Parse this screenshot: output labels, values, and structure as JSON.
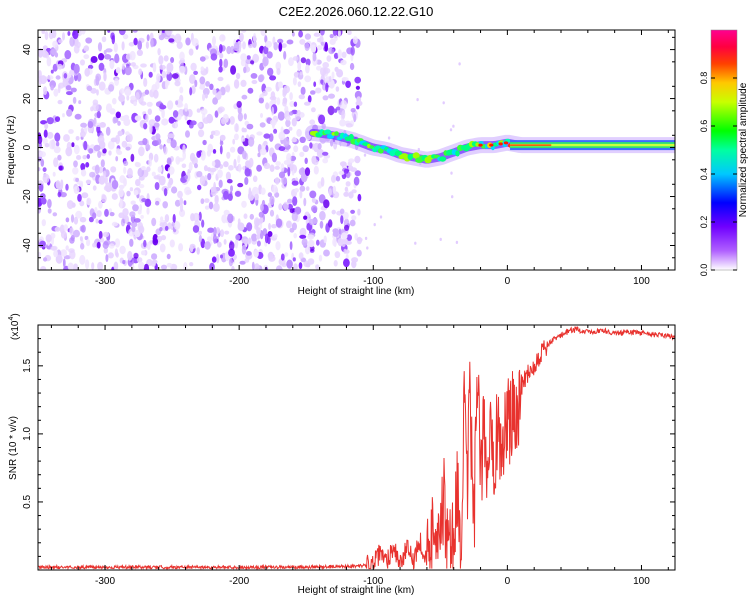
{
  "chart_data": [
    {
      "type": "heatmap",
      "title": "C2E2.2026.060.12.22.G10",
      "xlabel": "Height of straight line (km)",
      "ylabel": "Frequency (Hz)",
      "xlim": [
        -350,
        125
      ],
      "ylim": [
        -50,
        48
      ],
      "xticks": [
        -300,
        -200,
        -100,
        0,
        100
      ],
      "yticks": [
        -40,
        -20,
        0,
        20,
        40
      ],
      "xtick_labels": [
        "-300",
        "-200",
        "-100",
        "0",
        "100"
      ],
      "ytick_labels": [
        "-40",
        "-20",
        "0",
        "20",
        "40"
      ],
      "noise_region_x": [
        -350,
        -110
      ],
      "signal_track": {
        "x": [
          -145,
          -130,
          -115,
          -100,
          -90,
          -80,
          -70,
          -60,
          -50,
          -40,
          -30,
          -20,
          -10,
          0,
          10,
          30,
          60,
          90,
          125
        ],
        "frequency": [
          6,
          5,
          3,
          0,
          -1,
          -3,
          -4,
          -5,
          -4,
          -2,
          0,
          1,
          1,
          2,
          1,
          1,
          1,
          1,
          1
        ]
      },
      "colorbar": {
        "label": "Normalized spectral amplitude",
        "range": [
          0,
          1
        ],
        "ticks": [
          0.0,
          0.2,
          0.4,
          0.6,
          0.8
        ],
        "tick_labels": [
          "0.0",
          "0.2",
          "0.4",
          "0.6",
          "0.8"
        ],
        "colors": [
          "#ffffff",
          "#9f00ff",
          "#0000ff",
          "#00ffff",
          "#00ff00",
          "#ffff00",
          "#ff0000",
          "#ff00a0"
        ]
      }
    },
    {
      "type": "line",
      "xlabel": "Height of straight line (km)",
      "ylabel": "SNR (10 * v/v)",
      "y_multiplier": "(x10",
      "y_multiplier_exp": "4",
      "y_multiplier_close": ")",
      "xlim": [
        -350,
        125
      ],
      "ylim": [
        0,
        1.8
      ],
      "xticks": [
        -300,
        -200,
        -100,
        0,
        100
      ],
      "yticks": [
        0.5,
        1.0,
        1.5
      ],
      "xtick_labels": [
        "-300",
        "-200",
        "-100",
        "0",
        "100"
      ],
      "ytick_labels": [
        "0.5",
        "1.0",
        "1.5"
      ],
      "series": [
        {
          "name": "SNR",
          "color": "#e8322e",
          "x": [
            -350,
            -300,
            -250,
            -200,
            -150,
            -110,
            -100,
            -95,
            -90,
            -85,
            -80,
            -75,
            -70,
            -65,
            -60,
            -55,
            -52,
            -50,
            -47,
            -45,
            -42,
            -40,
            -38,
            -35,
            -32,
            -30,
            -28,
            -25,
            -22,
            -20,
            -17,
            -15,
            -12,
            -10,
            -7,
            -5,
            -2,
            0,
            3,
            5,
            8,
            10,
            15,
            20,
            25,
            30,
            35,
            40,
            45,
            50,
            60,
            70,
            80,
            90,
            100,
            110,
            120,
            125
          ],
          "y": [
            0.02,
            0.02,
            0.02,
            0.02,
            0.02,
            0.03,
            0.04,
            0.12,
            0.06,
            0.18,
            0.05,
            0.15,
            0.08,
            0.22,
            0.05,
            0.3,
            0.45,
            0.2,
            0.55,
            0.1,
            0.35,
            0.05,
            0.7,
            0.15,
            1.2,
            0.5,
            1.3,
            0.3,
            1.5,
            0.6,
            1.1,
            0.7,
            1.25,
            0.8,
            1.1,
            0.9,
            1.0,
            1.1,
            1.05,
            1.25,
            1.2,
            1.35,
            1.45,
            1.5,
            1.6,
            1.65,
            1.7,
            1.72,
            1.75,
            1.77,
            1.75,
            1.76,
            1.74,
            1.75,
            1.74,
            1.73,
            1.72,
            1.71
          ]
        }
      ]
    }
  ]
}
